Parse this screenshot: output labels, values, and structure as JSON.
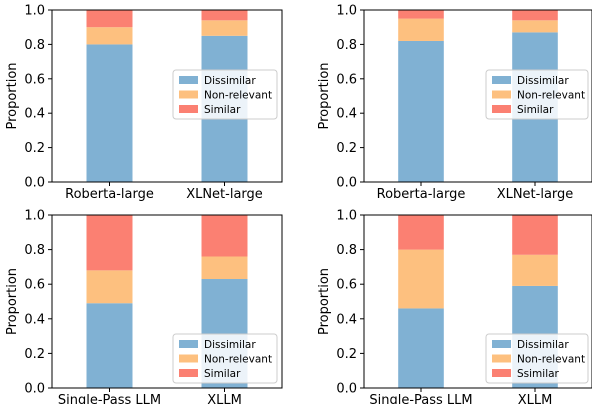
{
  "colors": {
    "dissimilar": "#80b1d3",
    "non_relevant": "#fdc07f",
    "similar": "#fb8072"
  },
  "chart_data": [
    {
      "type": "bar",
      "stacked": true,
      "categories": [
        "Roberta-large",
        "XLNet-large"
      ],
      "series": [
        {
          "name": "Dissimilar",
          "values": [
            0.8,
            0.85
          ]
        },
        {
          "name": "Non-relevant",
          "values": [
            0.1,
            0.09
          ]
        },
        {
          "name": "Similar",
          "values": [
            0.1,
            0.06
          ]
        }
      ],
      "ylabel": "Proportion",
      "ylim": [
        0,
        1
      ],
      "yticks": [
        "0.0",
        "0.2",
        "0.4",
        "0.6",
        "0.8",
        "1.0"
      ],
      "legend_position": "center-right"
    },
    {
      "type": "bar",
      "stacked": true,
      "categories": [
        "Roberta-large",
        "XLNet-large"
      ],
      "series": [
        {
          "name": "Dissimilar",
          "values": [
            0.82,
            0.87
          ]
        },
        {
          "name": "Non-relevant",
          "values": [
            0.13,
            0.07
          ]
        },
        {
          "name": "Similar",
          "values": [
            0.05,
            0.06
          ]
        }
      ],
      "ylabel": "Proportion",
      "ylim": [
        0,
        1
      ],
      "yticks": [
        "0.0",
        "0.2",
        "0.4",
        "0.6",
        "0.8",
        "1.0"
      ],
      "legend_position": "center-right"
    },
    {
      "type": "bar",
      "stacked": true,
      "categories": [
        "Single-Pass LLM",
        "XLLM"
      ],
      "series": [
        {
          "name": "Dissimilar",
          "values": [
            0.49,
            0.63
          ]
        },
        {
          "name": "Non-relevant",
          "values": [
            0.19,
            0.13
          ]
        },
        {
          "name": "Similar",
          "values": [
            0.32,
            0.24
          ]
        }
      ],
      "ylabel": "Proportion",
      "ylim": [
        0,
        1
      ],
      "yticks": [
        "0.0",
        "0.2",
        "0.4",
        "0.6",
        "0.8",
        "1.0"
      ],
      "legend_position": "lower-right"
    },
    {
      "type": "bar",
      "stacked": true,
      "categories": [
        "Single-Pass LLM",
        "XLLM"
      ],
      "series": [
        {
          "name": "Dissimilar",
          "values": [
            0.46,
            0.59
          ]
        },
        {
          "name": "Non-relevant",
          "values": [
            0.34,
            0.18
          ]
        },
        {
          "name": "Ssimilar",
          "values": [
            0.2,
            0.23
          ]
        }
      ],
      "ylabel": "Proportion",
      "ylim": [
        0,
        1
      ],
      "yticks": [
        "0.0",
        "0.2",
        "0.4",
        "0.6",
        "0.8",
        "1.0"
      ],
      "legend_position": "lower-right"
    }
  ]
}
